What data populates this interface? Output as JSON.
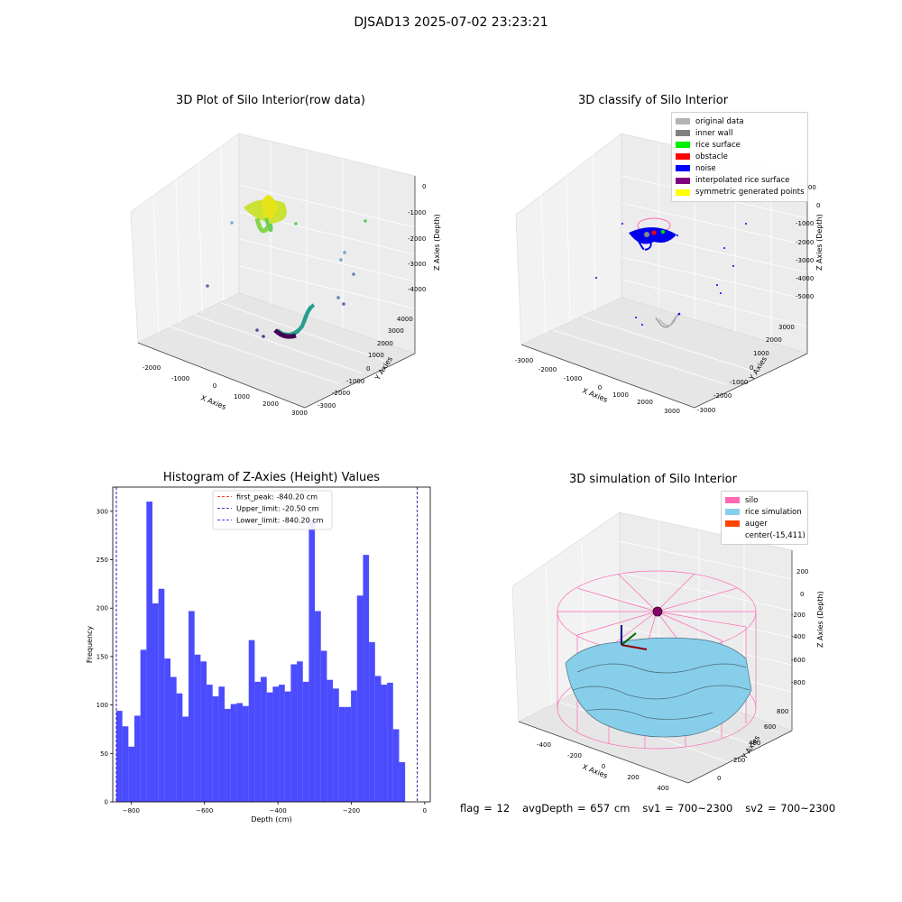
{
  "suptitle": "DJSAD13 2025-07-02 23:23:21",
  "panels": {
    "raw": {
      "title": "3D Plot of Silo Interior(row data)",
      "xlabel": "X Axies",
      "ylabel": "Y Axies",
      "zlabel": "Z Axies (Depth)",
      "xticks": [
        "-2000",
        "-1000",
        "0",
        "1000",
        "2000",
        "3000"
      ],
      "yticks": [
        "-3000",
        "-2000",
        "-1000",
        "0",
        "1000",
        "2000",
        "3000",
        "4000"
      ],
      "zticks": [
        "0",
        "-1000",
        "-2000",
        "-3000",
        "-4000"
      ]
    },
    "classify": {
      "title": "3D classify of Silo Interior",
      "xlabel": "X Axies",
      "ylabel": "Y Axies",
      "zlabel": "Z Axies (Depth)",
      "xticks": [
        "-3000",
        "-2000",
        "-1000",
        "0",
        "1000",
        "2000",
        "3000"
      ],
      "yticks": [
        "-3000",
        "-2000",
        "-1000",
        "0",
        "1000",
        "2000",
        "3000"
      ],
      "zticks": [
        "1000",
        "0",
        "-1000",
        "-2000",
        "-3000",
        "-4000",
        "-5000"
      ],
      "legend": [
        {
          "label": "original data",
          "color": "#b4b4b4"
        },
        {
          "label": "inner wall",
          "color": "#808080"
        },
        {
          "label": "rice surface",
          "color": "#00ee00"
        },
        {
          "label": "obstacle",
          "color": "#ff0000"
        },
        {
          "label": "noise",
          "color": "#0000ff"
        },
        {
          "label": "interpolated rice surface",
          "color": "#800080"
        },
        {
          "label": "symmetric generated points",
          "color": "#ffff00"
        }
      ]
    },
    "simulation": {
      "title": "3D simulation of Silo Interior",
      "xlabel": "X Axies",
      "ylabel": "Y Axies",
      "zlabel": "Z Axies (Depth)",
      "xticks": [
        "-400",
        "-200",
        "0",
        "200",
        "400"
      ],
      "yticks": [
        "0",
        "200",
        "400",
        "600",
        "800"
      ],
      "zticks": [
        "200",
        "0",
        "-200",
        "-400",
        "-600",
        "-800"
      ],
      "legend": [
        {
          "label": "silo",
          "color": "#ff69b4"
        },
        {
          "label": "rice simulation",
          "color": "#87ceeb"
        },
        {
          "label": "auger",
          "color": "#ff4500"
        },
        {
          "label": "center(-15,411)",
          "color": "transparent"
        }
      ]
    }
  },
  "footer": {
    "text": "flag = 12   avgDepth = 657 cm   sv1 = 700~2300   sv2 = 700~2300"
  },
  "chart_data": [
    {
      "type": "bar",
      "title": "Histogram of Z-Axies (Height) Values",
      "xlabel": "Depth (cm)",
      "ylabel": "Frequency",
      "bin_start": -840.2,
      "bin_width": 16.39,
      "values": [
        94,
        78,
        57,
        89,
        157,
        310,
        205,
        220,
        148,
        129,
        112,
        88,
        197,
        152,
        145,
        121,
        109,
        119,
        96,
        101,
        102,
        99,
        167,
        124,
        129,
        113,
        119,
        121,
        114,
        142,
        145,
        124,
        291,
        197,
        156,
        126,
        117,
        98,
        98,
        115,
        213,
        255,
        165,
        130,
        121,
        123,
        75,
        41
      ],
      "xlim": [
        -850,
        15
      ],
      "ylim": [
        0,
        325
      ],
      "xticks": [
        -800,
        -600,
        -400,
        -200,
        0
      ],
      "xtick_labels": [
        "−800",
        "−600",
        "−400",
        "−200",
        "0"
      ],
      "yticks": [
        0,
        50,
        100,
        150,
        200,
        250,
        300
      ],
      "bar_color": "#0000ff",
      "bar_alpha": 0.7,
      "vlines": [
        {
          "label": "first_peak: -840.20 cm",
          "x": -840.2,
          "color": "#ff0000"
        },
        {
          "label": "Upper_limit: -20.50 cm",
          "x": -20.5,
          "color": "#00008b"
        },
        {
          "label": "Lower_limit: -840.20 cm",
          "x": -840.2,
          "color": "#0000ff"
        }
      ],
      "grid": false,
      "legend_position": "upper-center"
    }
  ]
}
